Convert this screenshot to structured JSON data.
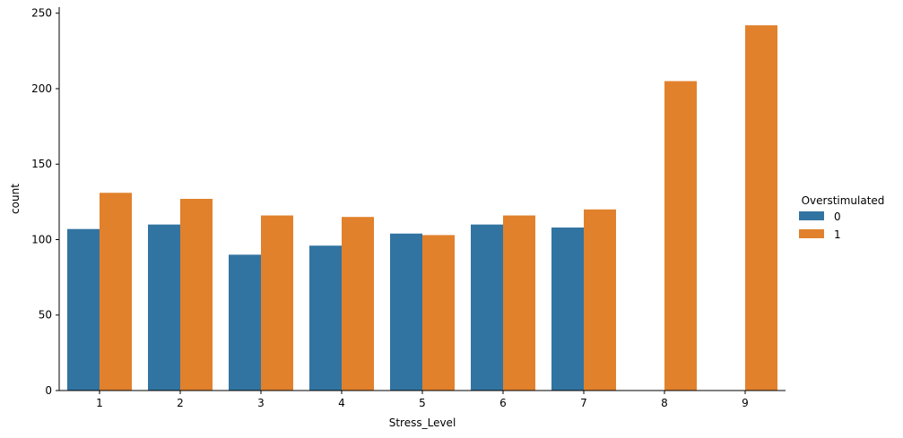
{
  "chart_data": {
    "type": "bar",
    "title": "",
    "xlabel": "Stress_Level",
    "ylabel": "count",
    "categories": [
      "1",
      "2",
      "3",
      "4",
      "5",
      "6",
      "7",
      "8",
      "9"
    ],
    "ylim": [
      0,
      254
    ],
    "yticks": [
      "0",
      "50",
      "100",
      "150",
      "200",
      "250"
    ],
    "legend_title": "Overstimulated",
    "legend_position": "right",
    "grid": false,
    "series": [
      {
        "name": "0",
        "color": "#3274a1",
        "values": [
          107,
          110,
          90,
          96,
          104,
          110,
          108,
          0,
          0
        ]
      },
      {
        "name": "1",
        "color": "#e1812c",
        "values": [
          131,
          127,
          116,
          115,
          103,
          116,
          120,
          205,
          242
        ]
      }
    ]
  }
}
